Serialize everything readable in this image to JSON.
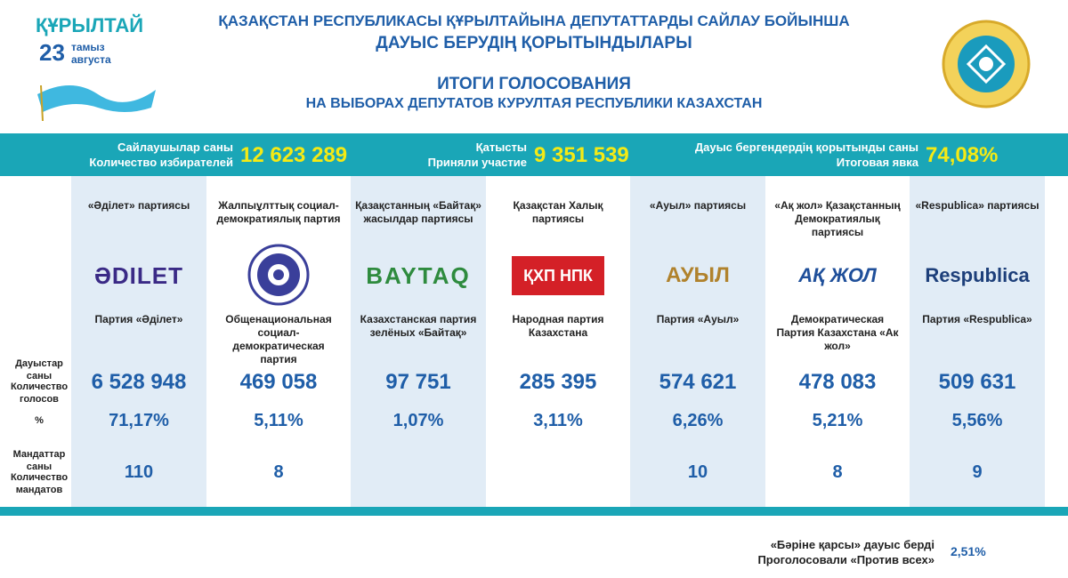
{
  "header": {
    "title_kz_1": "ҚАЗАҚСТАН РЕСПУБЛИКАСЫ ҚҰРЫЛТАЙЫНА ДЕПУТАТТАРДЫ САЙЛАУ БОЙЫНША",
    "title_kz_2": "ДАУЫС БЕРУДІҢ ҚОРЫТЫНДЫЛАРЫ",
    "title_ru_1": "ИТОГИ ГОЛОСОВАНИЯ",
    "title_ru_2": "НА ВЫБОРАХ ДЕПУТАТОВ КУРУЛТАЯ РЕСПУБЛИКИ КАЗАХСТАН",
    "logo": {
      "word": "ҚҰРЫЛТАЙ",
      "day": "23",
      "month_kz": "тамыз",
      "month_ru": "августа"
    }
  },
  "summary": [
    {
      "label_kz": "Сайлаушылар саны",
      "label_ru": "Количество избирателей",
      "value": "12 623 289"
    },
    {
      "label_kz": "Қатысты",
      "label_ru": "Приняли участие",
      "value": "9 351 539"
    },
    {
      "label_kz": "Дауыс бергендердің қорытынды саны",
      "label_ru": "Итоговая явка",
      "value": "74,08%"
    }
  ],
  "row_labels": {
    "votes": [
      "Дауыстар саны",
      "Количество голосов"
    ],
    "percent": "%",
    "mandates": [
      "Мандаттар саны",
      "Количество мандатов"
    ]
  },
  "parties": [
    {
      "name_kz": "«Әділет» партиясы",
      "logo": "ӘDILET",
      "name_ru": "Партия «Әділет»",
      "votes": "6 528 948",
      "percent": "71,17%",
      "mandates": "110"
    },
    {
      "name_kz": "Жалпыұлттық социал-демократиялық партия",
      "logo": null,
      "name_ru": "Общенациональная социал-демократическая партия",
      "votes": "469 058",
      "percent": "5,11%",
      "mandates": "8"
    },
    {
      "name_kz": "Қазақстанның «Байтақ» жасылдар партиясы",
      "logo": "BAYTAQ",
      "name_ru": "Казахстанская партия зелёных «Байтақ»",
      "votes": "97 751",
      "percent": "1,07%",
      "mandates": null
    },
    {
      "name_kz": "Қазақстан Халық партиясы",
      "logo": "ҚХП НПК",
      "name_ru": "Народная партия Казахстана",
      "votes": "285 395",
      "percent": "3,11%",
      "mandates": null
    },
    {
      "name_kz": "«Ауыл» партиясы",
      "logo": "АУЫЛ",
      "name_ru": "Партия «Ауыл»",
      "votes": "574 621",
      "percent": "6,26%",
      "mandates": "10"
    },
    {
      "name_kz": "«Ақ жол» Қазақстанның Демократиялық партиясы",
      "logo": "АҚ ЖОЛ",
      "name_ru": "Демократическая Партия Казахстана «Ак жол»",
      "votes": "478 083",
      "percent": "5,21%",
      "mandates": "8"
    },
    {
      "name_kz": "«Respublica» партиясы",
      "logo": "Respublica",
      "name_ru": "Партия «Respublica»",
      "votes": "509 631",
      "percent": "5,56%",
      "mandates": "9"
    }
  ],
  "footer": {
    "label_kz": "«Бәріне қарсы» дауыс берді",
    "label_ru": "Проголосовали «Против всех»",
    "value": "2,51%"
  }
}
